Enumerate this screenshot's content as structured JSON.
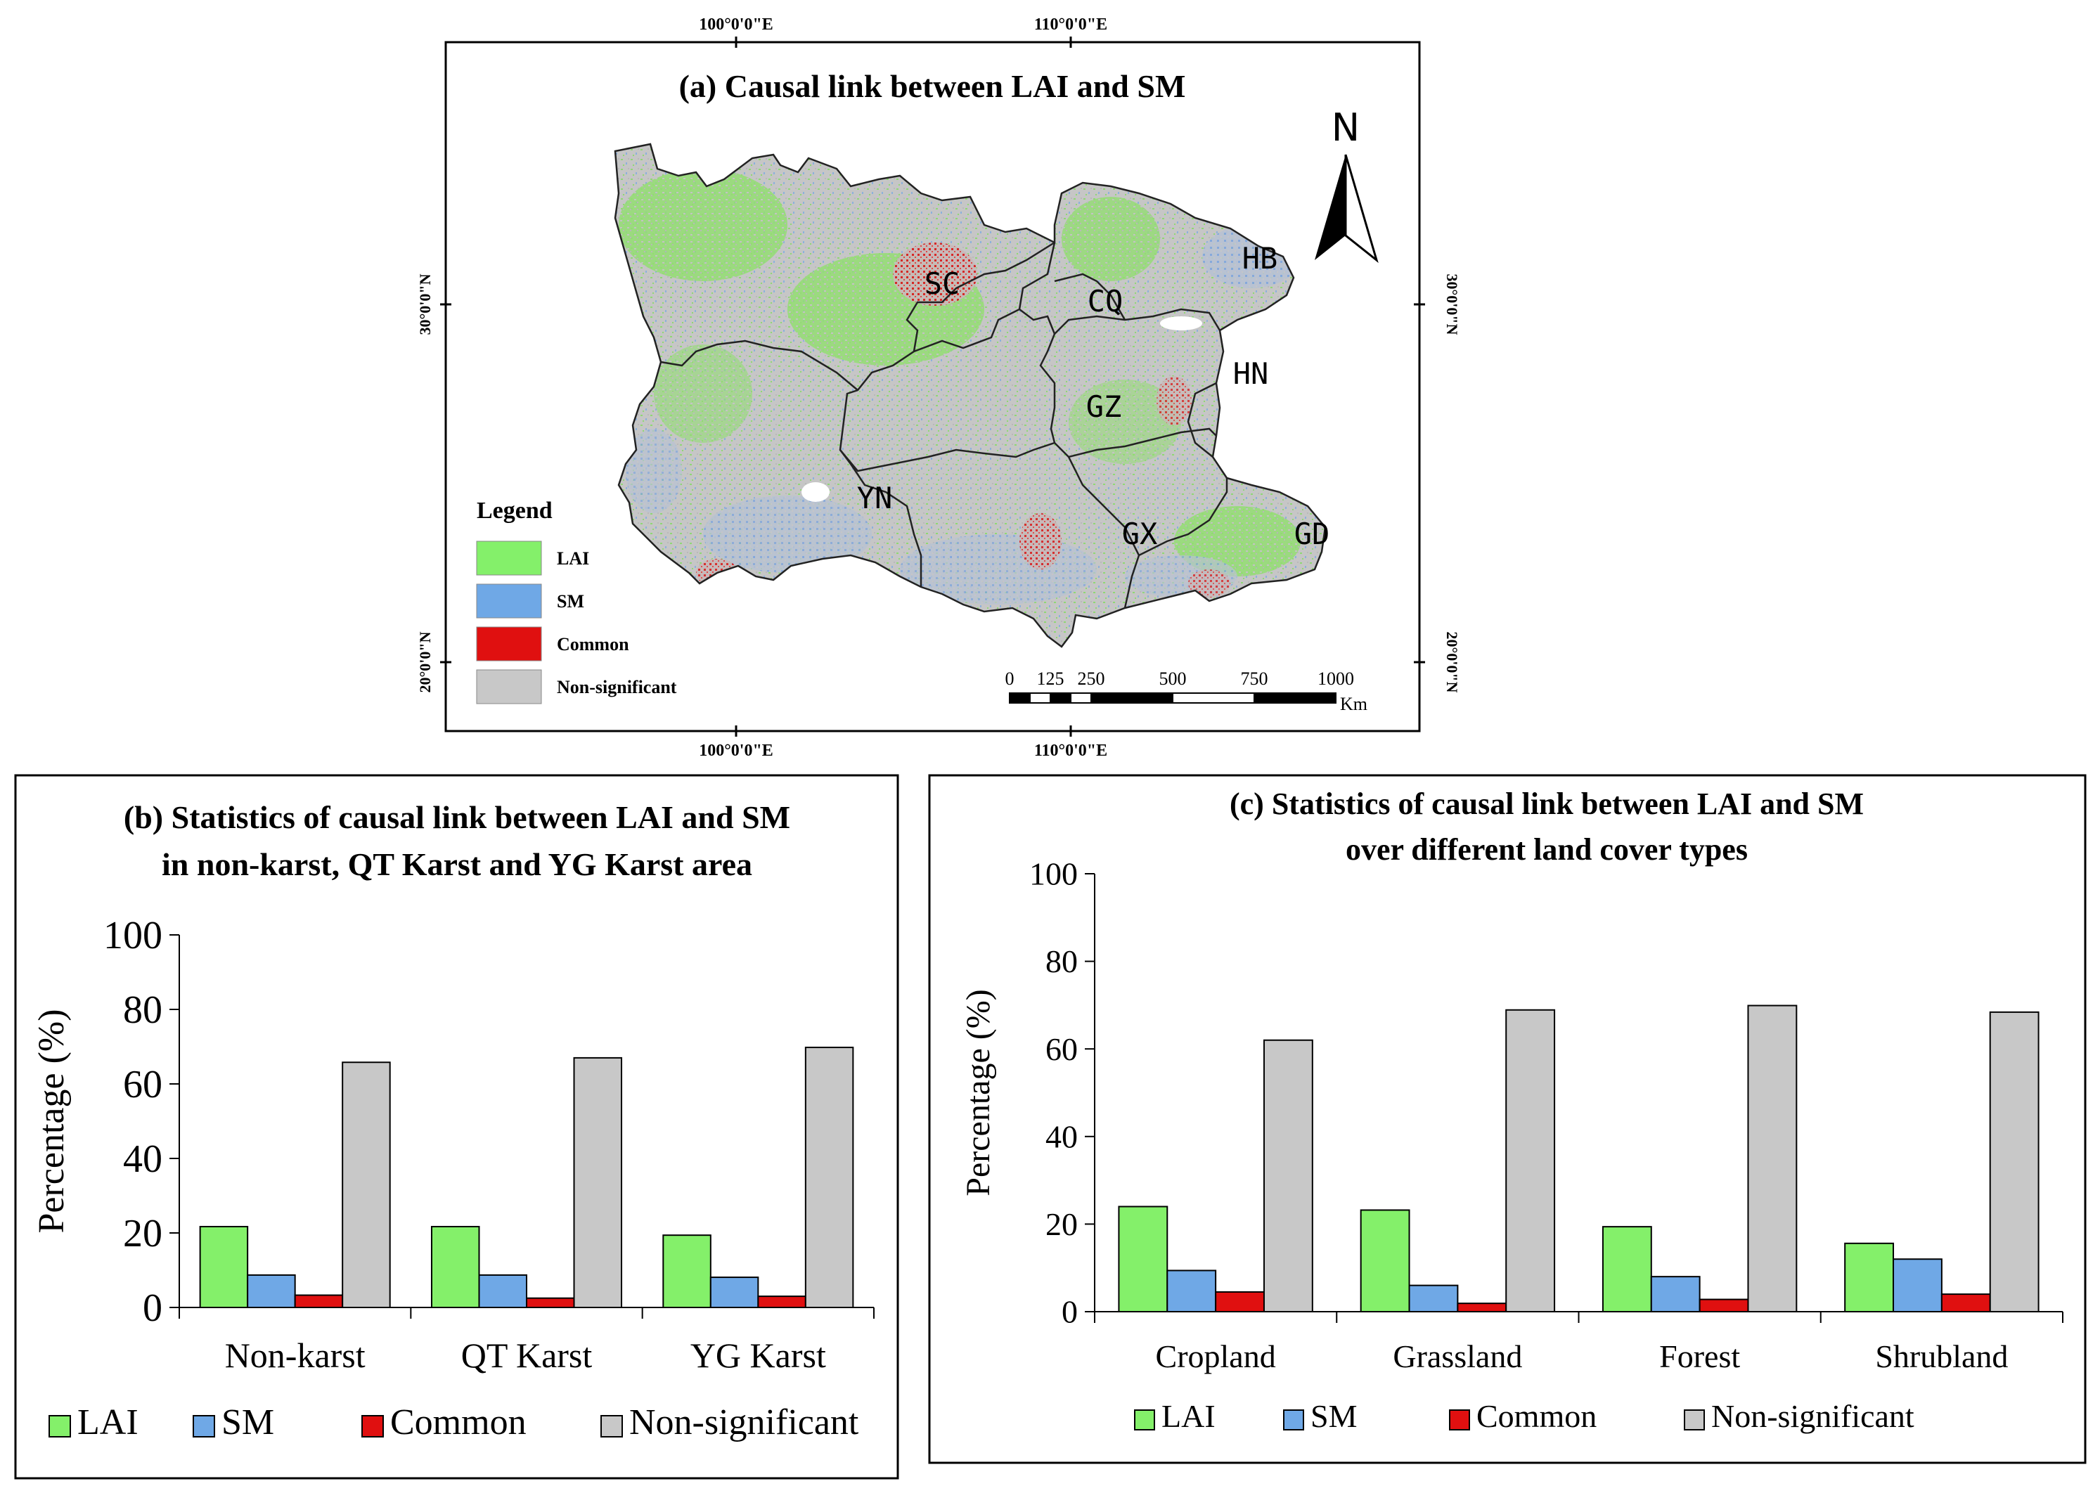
{
  "map": {
    "title": "(a) Causal link between LAI and SM",
    "lon_labels": [
      "100°0'0\"E",
      "110°0'0\"E"
    ],
    "lat_labels": [
      "30°0'0\"N",
      "20°0'0\"N"
    ],
    "north": "N",
    "provinces": [
      "SC",
      "CQ",
      "HB",
      "HN",
      "GZ",
      "YN",
      "GX",
      "GD"
    ],
    "legend": {
      "title": "Legend",
      "items": [
        {
          "label": "LAI",
          "color": "#84f06a"
        },
        {
          "label": "SM",
          "color": "#6fa8e6"
        },
        {
          "label": "Common",
          "color": "#e01010"
        },
        {
          "label": "Non-significant",
          "color": "#c8c8c8"
        }
      ]
    },
    "scale": {
      "ticks": [
        "0",
        "125",
        "250",
        "500",
        "750",
        "1000"
      ],
      "unit": "Km"
    }
  },
  "chart_data": [
    {
      "type": "bar",
      "title": "(b) Statistics of causal link between LAI and SM in non-karst, QT Karst and YG Karst area",
      "title_lines": [
        "(b) Statistics of causal link between LAI and SM",
        "in non-karst, QT Karst and YG Karst area"
      ],
      "categories": [
        "Non-karst",
        "QT Karst",
        "YG Karst"
      ],
      "series": [
        {
          "name": "LAI",
          "color": "#84f06a",
          "values": [
            21.7,
            21.7,
            19.4
          ]
        },
        {
          "name": "SM",
          "color": "#6fa8e6",
          "values": [
            8.7,
            8.7,
            8.1
          ]
        },
        {
          "name": "Common",
          "color": "#e01010",
          "values": [
            3.3,
            2.5,
            3.0
          ]
        },
        {
          "name": "Non-significant",
          "color": "#c8c8c8",
          "values": [
            65.8,
            67.0,
            69.8
          ]
        }
      ],
      "ylabel": "Percentage (%)",
      "ylim": [
        0,
        100
      ],
      "yticks": [
        "0",
        "20",
        "40",
        "60",
        "80",
        "100"
      ],
      "legend": "bottom"
    },
    {
      "type": "bar",
      "title": "(c) Statistics of causal link between LAI and SM over different land cover types",
      "title_lines": [
        "(c)  Statistics of causal link between LAI and SM",
        "over different land cover types"
      ],
      "categories": [
        "Cropland",
        "Grassland",
        "Forest",
        "Shrubland"
      ],
      "series": [
        {
          "name": "LAI",
          "color": "#84f06a",
          "values": [
            24.0,
            23.2,
            19.4,
            15.6
          ]
        },
        {
          "name": "SM",
          "color": "#6fa8e6",
          "values": [
            9.4,
            6.0,
            8.0,
            12.0
          ]
        },
        {
          "name": "Common",
          "color": "#e01010",
          "values": [
            4.5,
            1.9,
            2.8,
            4.0
          ]
        },
        {
          "name": "Non-significant",
          "color": "#c8c8c8",
          "values": [
            62.0,
            68.9,
            69.9,
            68.4
          ]
        }
      ],
      "ylabel": "Percentage (%)",
      "ylim": [
        0,
        100
      ],
      "yticks": [
        "0",
        "20",
        "40",
        "60",
        "80",
        "100"
      ],
      "legend": "bottom"
    }
  ]
}
